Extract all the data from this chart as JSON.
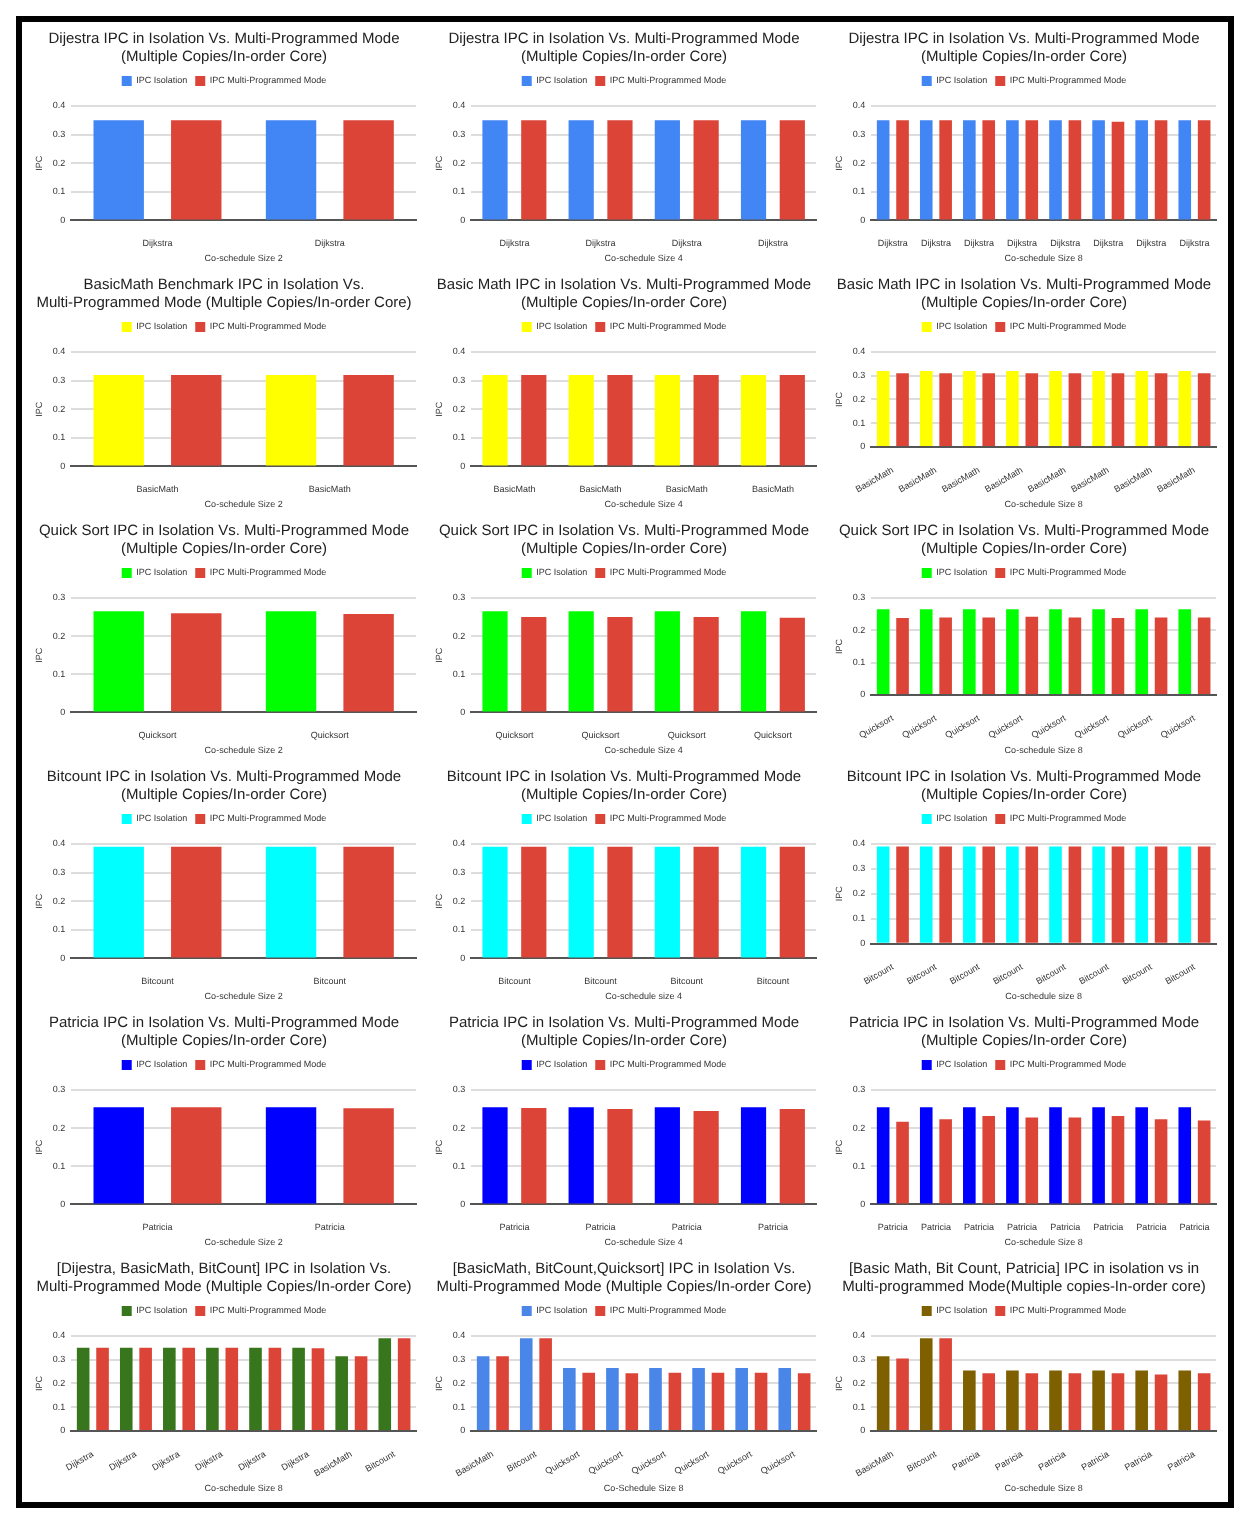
{
  "chart_data": [
    {
      "type": "bar",
      "title": "Dijestra IPC in Isolation Vs. Multi-Programmed Mode (Multiple Copies/In-order Core)",
      "xlabel": "Co-schedule Size 2",
      "ylabel": "IPC",
      "categories": [
        "Dijkstra",
        "Dijkstra"
      ],
      "series": [
        {
          "name": "IPC Isolation",
          "color": "#4285f4",
          "values": [
            0.35,
            0.35
          ]
        },
        {
          "name": "IPC Multi-Programmed Mode",
          "color": "#db4437",
          "values": [
            0.35,
            0.35
          ]
        }
      ],
      "ylim": [
        0,
        0.4
      ],
      "yticks": [
        0,
        0.1,
        0.2,
        0.3,
        0.4
      ],
      "grid": "y",
      "legend": "top"
    },
    {
      "type": "bar",
      "title": "Dijestra IPC in Isolation Vs. Multi-Programmed Mode (Multiple Copies/In-order Core)",
      "xlabel": "Co-schedule Size 4",
      "ylabel": "IPC",
      "categories": [
        "Dijkstra",
        "Dijkstra",
        "Dijkstra",
        "Dijkstra"
      ],
      "series": [
        {
          "name": "IPC Isolation",
          "color": "#4285f4",
          "values": [
            0.35,
            0.35,
            0.35,
            0.35
          ]
        },
        {
          "name": "IPC Multi-Programmed Mode",
          "color": "#db4437",
          "values": [
            0.35,
            0.35,
            0.35,
            0.35
          ]
        }
      ],
      "ylim": [
        0,
        0.4
      ],
      "yticks": [
        0,
        0.1,
        0.2,
        0.3,
        0.4
      ],
      "grid": "y",
      "legend": "top"
    },
    {
      "type": "bar",
      "title": "Dijestra IPC in Isolation Vs. Multi-Programmed Mode (Multiple Copies/In-order Core)",
      "xlabel": "Co-schedule Size 8",
      "ylabel": "IPC",
      "categories": [
        "Dijkstra",
        "Dijkstra",
        "Dijkstra",
        "Dijkstra",
        "Dijkstra",
        "Dijkstra",
        "Dijkstra",
        "Dijkstra"
      ],
      "series": [
        {
          "name": "IPC Isolation",
          "color": "#4285f4",
          "values": [
            0.35,
            0.35,
            0.35,
            0.35,
            0.35,
            0.35,
            0.35,
            0.35
          ]
        },
        {
          "name": "IPC Multi-Programmed Mode",
          "color": "#db4437",
          "values": [
            0.35,
            0.35,
            0.35,
            0.35,
            0.35,
            0.345,
            0.35,
            0.35
          ]
        }
      ],
      "ylim": [
        0,
        0.4
      ],
      "yticks": [
        0,
        0.1,
        0.2,
        0.3,
        0.4
      ],
      "grid": "y",
      "legend": "top"
    },
    {
      "type": "bar",
      "title": "BasicMath Benchmark IPC in Isolation Vs. Multi-Programmed Mode (Multiple Copies/In-order Core)",
      "xlabel": "Co-schedule Size 2",
      "ylabel": "IPC",
      "categories": [
        "BasicMath",
        "BasicMath"
      ],
      "series": [
        {
          "name": "IPC Isolation",
          "color": "#ffff00",
          "values": [
            0.32,
            0.32
          ]
        },
        {
          "name": "IPC Multi-Programmed Mode",
          "color": "#db4437",
          "values": [
            0.32,
            0.32
          ]
        }
      ],
      "ylim": [
        0,
        0.4
      ],
      "yticks": [
        0,
        0.1,
        0.2,
        0.3,
        0.4
      ],
      "grid": "y",
      "legend": "top"
    },
    {
      "type": "bar",
      "title": "Basic Math IPC in Isolation Vs. Multi-Programmed Mode (Multiple Copies/In-order Core)",
      "xlabel": "Co-schedule Size 4",
      "ylabel": "IPC",
      "categories": [
        "BasicMath",
        "BasicMath",
        "BasicMath",
        "BasicMath"
      ],
      "series": [
        {
          "name": "IPC Isolation",
          "color": "#ffff00",
          "values": [
            0.32,
            0.32,
            0.32,
            0.32
          ]
        },
        {
          "name": "IPC Multi-Programmed Mode",
          "color": "#db4437",
          "values": [
            0.32,
            0.32,
            0.32,
            0.32
          ]
        }
      ],
      "ylim": [
        0,
        0.4
      ],
      "yticks": [
        0,
        0.1,
        0.2,
        0.3,
        0.4
      ],
      "grid": "y",
      "legend": "top"
    },
    {
      "type": "bar",
      "title": "Basic Math IPC in Isolation Vs. Multi-Programmed Mode (Multiple Copies/In-order Core)",
      "xlabel": "Co-schedule Size 8",
      "ylabel": "IPC",
      "categories": [
        "BasicMath",
        "BasicMath",
        "BasicMath",
        "BasicMath",
        "BasicMath",
        "BasicMath",
        "BasicMath",
        "BasicMath"
      ],
      "series": [
        {
          "name": "IPC Isolation",
          "color": "#ffff00",
          "values": [
            0.32,
            0.32,
            0.32,
            0.32,
            0.32,
            0.32,
            0.32,
            0.32
          ]
        },
        {
          "name": "IPC Multi-Programmed Mode",
          "color": "#db4437",
          "values": [
            0.31,
            0.31,
            0.31,
            0.31,
            0.31,
            0.31,
            0.31,
            0.31
          ]
        }
      ],
      "ylim": [
        0,
        0.4
      ],
      "yticks": [
        0,
        0.1,
        0.2,
        0.3,
        0.4
      ],
      "grid": "y",
      "legend": "top"
    },
    {
      "type": "bar",
      "title": "Quick Sort IPC in Isolation Vs. Multi-Programmed Mode (Multiple Copies/In-order Core)",
      "xlabel": "Co-schedule Size 2",
      "ylabel": "IPC",
      "categories": [
        "Quicksort",
        "Quicksort"
      ],
      "series": [
        {
          "name": "IPC Isolation",
          "color": "#00ff00",
          "values": [
            0.265,
            0.265
          ]
        },
        {
          "name": "IPC Multi-Programmed Mode",
          "color": "#db4437",
          "values": [
            0.26,
            0.258
          ]
        }
      ],
      "ylim": [
        0,
        0.3
      ],
      "yticks": [
        0,
        0.1,
        0.2,
        0.3
      ],
      "grid": "y",
      "legend": "top"
    },
    {
      "type": "bar",
      "title": "Quick Sort IPC in Isolation Vs. Multi-Programmed Mode (Multiple Copies/In-order Core)",
      "xlabel": "Co-schedule Size 4",
      "ylabel": "IPC",
      "categories": [
        "Quicksort",
        "Quicksort",
        "Quicksort",
        "Quicksort"
      ],
      "series": [
        {
          "name": "IPC Isolation",
          "color": "#00ff00",
          "values": [
            0.265,
            0.265,
            0.265,
            0.265
          ]
        },
        {
          "name": "IPC Multi-Programmed Mode",
          "color": "#db4437",
          "values": [
            0.25,
            0.25,
            0.25,
            0.248
          ]
        }
      ],
      "ylim": [
        0,
        0.3
      ],
      "yticks": [
        0,
        0.1,
        0.2,
        0.3
      ],
      "grid": "y",
      "legend": "top"
    },
    {
      "type": "bar",
      "title": "Quick Sort IPC in Isolation Vs. Multi-Programmed Mode (Multiple Copies/In-order Core)",
      "xlabel": "Co-schedule Size 8",
      "ylabel": "IPC",
      "categories": [
        "Quicksort",
        "Quicksort",
        "Quicksort",
        "Quicksort",
        "Quicksort",
        "Quicksort",
        "Quicksort",
        "Quicksort"
      ],
      "series": [
        {
          "name": "IPC Isolation",
          "color": "#00ff00",
          "values": [
            0.265,
            0.265,
            0.265,
            0.265,
            0.265,
            0.265,
            0.265,
            0.265
          ]
        },
        {
          "name": "IPC Multi-Programmed Mode",
          "color": "#db4437",
          "values": [
            0.238,
            0.24,
            0.24,
            0.242,
            0.24,
            0.238,
            0.24,
            0.24
          ]
        }
      ],
      "ylim": [
        0,
        0.3
      ],
      "yticks": [
        0,
        0.1,
        0.2,
        0.3
      ],
      "grid": "y",
      "legend": "top"
    },
    {
      "type": "bar",
      "title": "Bitcount IPC in Isolation Vs. Multi-Programmed Mode (Multiple Copies/In-order Core)",
      "xlabel": "Co-schedule Size 2",
      "ylabel": "IPC",
      "categories": [
        "Bitcount",
        "Bitcount"
      ],
      "series": [
        {
          "name": "IPC Isolation",
          "color": "#00ffff",
          "values": [
            0.39,
            0.39
          ]
        },
        {
          "name": "IPC Multi-Programmed Mode",
          "color": "#db4437",
          "values": [
            0.39,
            0.39
          ]
        }
      ],
      "ylim": [
        0,
        0.4
      ],
      "yticks": [
        0,
        0.1,
        0.2,
        0.3,
        0.4
      ],
      "grid": "y",
      "legend": "top"
    },
    {
      "type": "bar",
      "title": "Bitcount IPC in Isolation Vs. Multi-Programmed Mode (Multiple Copies/In-order Core)",
      "xlabel": "Co-schedule size 4",
      "ylabel": "IPC",
      "categories": [
        "Bitcount",
        "Bitcount",
        "Bitcount",
        "Bitcount"
      ],
      "series": [
        {
          "name": "IPC Isolation",
          "color": "#00ffff",
          "values": [
            0.39,
            0.39,
            0.39,
            0.39
          ]
        },
        {
          "name": "IPC Multi-Programmed Mode",
          "color": "#db4437",
          "values": [
            0.39,
            0.39,
            0.39,
            0.39
          ]
        }
      ],
      "ylim": [
        0,
        0.4
      ],
      "yticks": [
        0,
        0.1,
        0.2,
        0.3,
        0.4
      ],
      "grid": "y",
      "legend": "top"
    },
    {
      "type": "bar",
      "title": "Bitcount IPC in Isolation Vs. Multi-Programmed Mode (Multiple Copies/In-order Core)",
      "xlabel": "Co-schedule size 8",
      "ylabel": "IPC",
      "categories": [
        "Bitcount",
        "Bitcount",
        "Bitcount",
        "Bitcount",
        "Bitcount",
        "Bitcount",
        "Bitcount",
        "Bitcount"
      ],
      "series": [
        {
          "name": "IPC Isolation",
          "color": "#00ffff",
          "values": [
            0.39,
            0.39,
            0.39,
            0.39,
            0.39,
            0.39,
            0.39,
            0.39
          ]
        },
        {
          "name": "IPC Multi-Programmed Mode",
          "color": "#db4437",
          "values": [
            0.39,
            0.39,
            0.39,
            0.39,
            0.39,
            0.39,
            0.39,
            0.39
          ]
        }
      ],
      "ylim": [
        0,
        0.4
      ],
      "yticks": [
        0,
        0.1,
        0.2,
        0.3,
        0.4
      ],
      "grid": "y",
      "legend": "top"
    },
    {
      "type": "bar",
      "title": "Patricia IPC in Isolation Vs. Multi-Programmed Mode (Multiple Copies/In-order Core)",
      "xlabel": "Co-schedule Size 2",
      "ylabel": "IPC",
      "categories": [
        "Patricia",
        "Patricia"
      ],
      "series": [
        {
          "name": "IPC Isolation",
          "color": "#0000ff",
          "values": [
            0.255,
            0.255
          ]
        },
        {
          "name": "IPC Multi-Programmed Mode",
          "color": "#db4437",
          "values": [
            0.255,
            0.252
          ]
        }
      ],
      "ylim": [
        0,
        0.3
      ],
      "yticks": [
        0,
        0.1,
        0.2,
        0.3
      ],
      "grid": "y",
      "legend": "top"
    },
    {
      "type": "bar",
      "title": "Patricia IPC in Isolation Vs. Multi-Programmed Mode (Multiple Copies/In-order Core)",
      "xlabel": "Co-schedule Size 4",
      "ylabel": "IPC",
      "categories": [
        "Patricia",
        "Patricia",
        "Patricia",
        "Patricia"
      ],
      "series": [
        {
          "name": "IPC Isolation",
          "color": "#0000ff",
          "values": [
            0.255,
            0.255,
            0.255,
            0.255
          ]
        },
        {
          "name": "IPC Multi-Programmed Mode",
          "color": "#db4437",
          "values": [
            0.253,
            0.25,
            0.245,
            0.25
          ]
        }
      ],
      "ylim": [
        0,
        0.3
      ],
      "yticks": [
        0,
        0.1,
        0.2,
        0.3
      ],
      "grid": "y",
      "legend": "top"
    },
    {
      "type": "bar",
      "title": "Patricia IPC in Isolation Vs. Multi-Programmed Mode (Multiple Copies/In-order Core)",
      "xlabel": "Co-schedule Size 8",
      "ylabel": "IPC",
      "categories": [
        "Patricia",
        "Patricia",
        "Patricia",
        "Patricia",
        "Patricia",
        "Patricia",
        "Patricia",
        "Patricia"
      ],
      "series": [
        {
          "name": "IPC Isolation",
          "color": "#0000ff",
          "values": [
            0.255,
            0.255,
            0.255,
            0.255,
            0.255,
            0.255,
            0.255,
            0.255
          ]
        },
        {
          "name": "IPC Multi-Programmed Mode",
          "color": "#db4437",
          "values": [
            0.217,
            0.223,
            0.232,
            0.228,
            0.228,
            0.232,
            0.223,
            0.22
          ]
        }
      ],
      "ylim": [
        0,
        0.3
      ],
      "yticks": [
        0,
        0.1,
        0.2,
        0.3
      ],
      "grid": "y",
      "legend": "top"
    },
    {
      "type": "bar",
      "title": "[Dijestra, BasicMath, BitCount] IPC in Isolation Vs. Multi-Programmed Mode (Multiple Copies/In-order Core)",
      "xlabel": "Co-schedule Size 8",
      "ylabel": "IPC",
      "categories": [
        "Dijkstra",
        "Dijkstra",
        "Dijkstra",
        "Dijkstra",
        "Dijkstra",
        "Dijkstra",
        "BasicMath",
        "Bitcount"
      ],
      "series": [
        {
          "name": "IPC Isolation",
          "color": "#38761d",
          "values": [
            0.35,
            0.35,
            0.35,
            0.35,
            0.35,
            0.35,
            0.315,
            0.39
          ]
        },
        {
          "name": "IPC Multi-Programmed Mode",
          "color": "#db4437",
          "values": [
            0.35,
            0.35,
            0.35,
            0.35,
            0.35,
            0.348,
            0.315,
            0.39
          ]
        }
      ],
      "ylim": [
        0,
        0.4
      ],
      "yticks": [
        0,
        0.1,
        0.2,
        0.3,
        0.4
      ],
      "grid": "y",
      "legend": "top"
    },
    {
      "type": "bar",
      "title": "[BasicMath, BitCount,Quicksort] IPC in Isolation Vs. Multi-Programmed Mode (Multiple Copies/In-order Core)",
      "xlabel": "Co-Schedule Size 8",
      "ylabel": "IPC",
      "categories": [
        "BasicMath",
        "Bitcount",
        "Quicksort",
        "Quicksort",
        "Quicksort",
        "Quicksort",
        "Quicksort",
        "Quicksort"
      ],
      "series": [
        {
          "name": "IPC Isolation",
          "color": "#4a86e8",
          "values": [
            0.315,
            0.39,
            0.265,
            0.265,
            0.265,
            0.265,
            0.265,
            0.265
          ]
        },
        {
          "name": "IPC Multi-Programmed Mode",
          "color": "#db4437",
          "values": [
            0.315,
            0.39,
            0.245,
            0.243,
            0.245,
            0.245,
            0.245,
            0.243
          ]
        }
      ],
      "ylim": [
        0,
        0.4
      ],
      "yticks": [
        0,
        0.1,
        0.2,
        0.3,
        0.4
      ],
      "grid": "y",
      "legend": "top"
    },
    {
      "type": "bar",
      "title": "[Basic Math, Bit Count, Patricia] IPC in isolation vs in Multi-programmed Mode(Multiple copies-In-order core)",
      "xlabel": "Co-schedule Size 8",
      "ylabel": "IPC",
      "categories": [
        "BasicMath",
        "Bitcount",
        "Patricia",
        "Patricia",
        "Patricia",
        "Patricia",
        "Patricia",
        "Patricia"
      ],
      "series": [
        {
          "name": "IPC Isolation",
          "color": "#7f6000",
          "values": [
            0.315,
            0.39,
            0.255,
            0.255,
            0.255,
            0.255,
            0.255,
            0.255
          ]
        },
        {
          "name": "IPC Multi-Programmed Mode",
          "color": "#db4437",
          "values": [
            0.305,
            0.39,
            0.243,
            0.243,
            0.243,
            0.243,
            0.238,
            0.243
          ]
        }
      ],
      "ylim": [
        0,
        0.4
      ],
      "yticks": [
        0,
        0.1,
        0.2,
        0.3,
        0.4
      ],
      "grid": "y",
      "legend": "top"
    }
  ]
}
